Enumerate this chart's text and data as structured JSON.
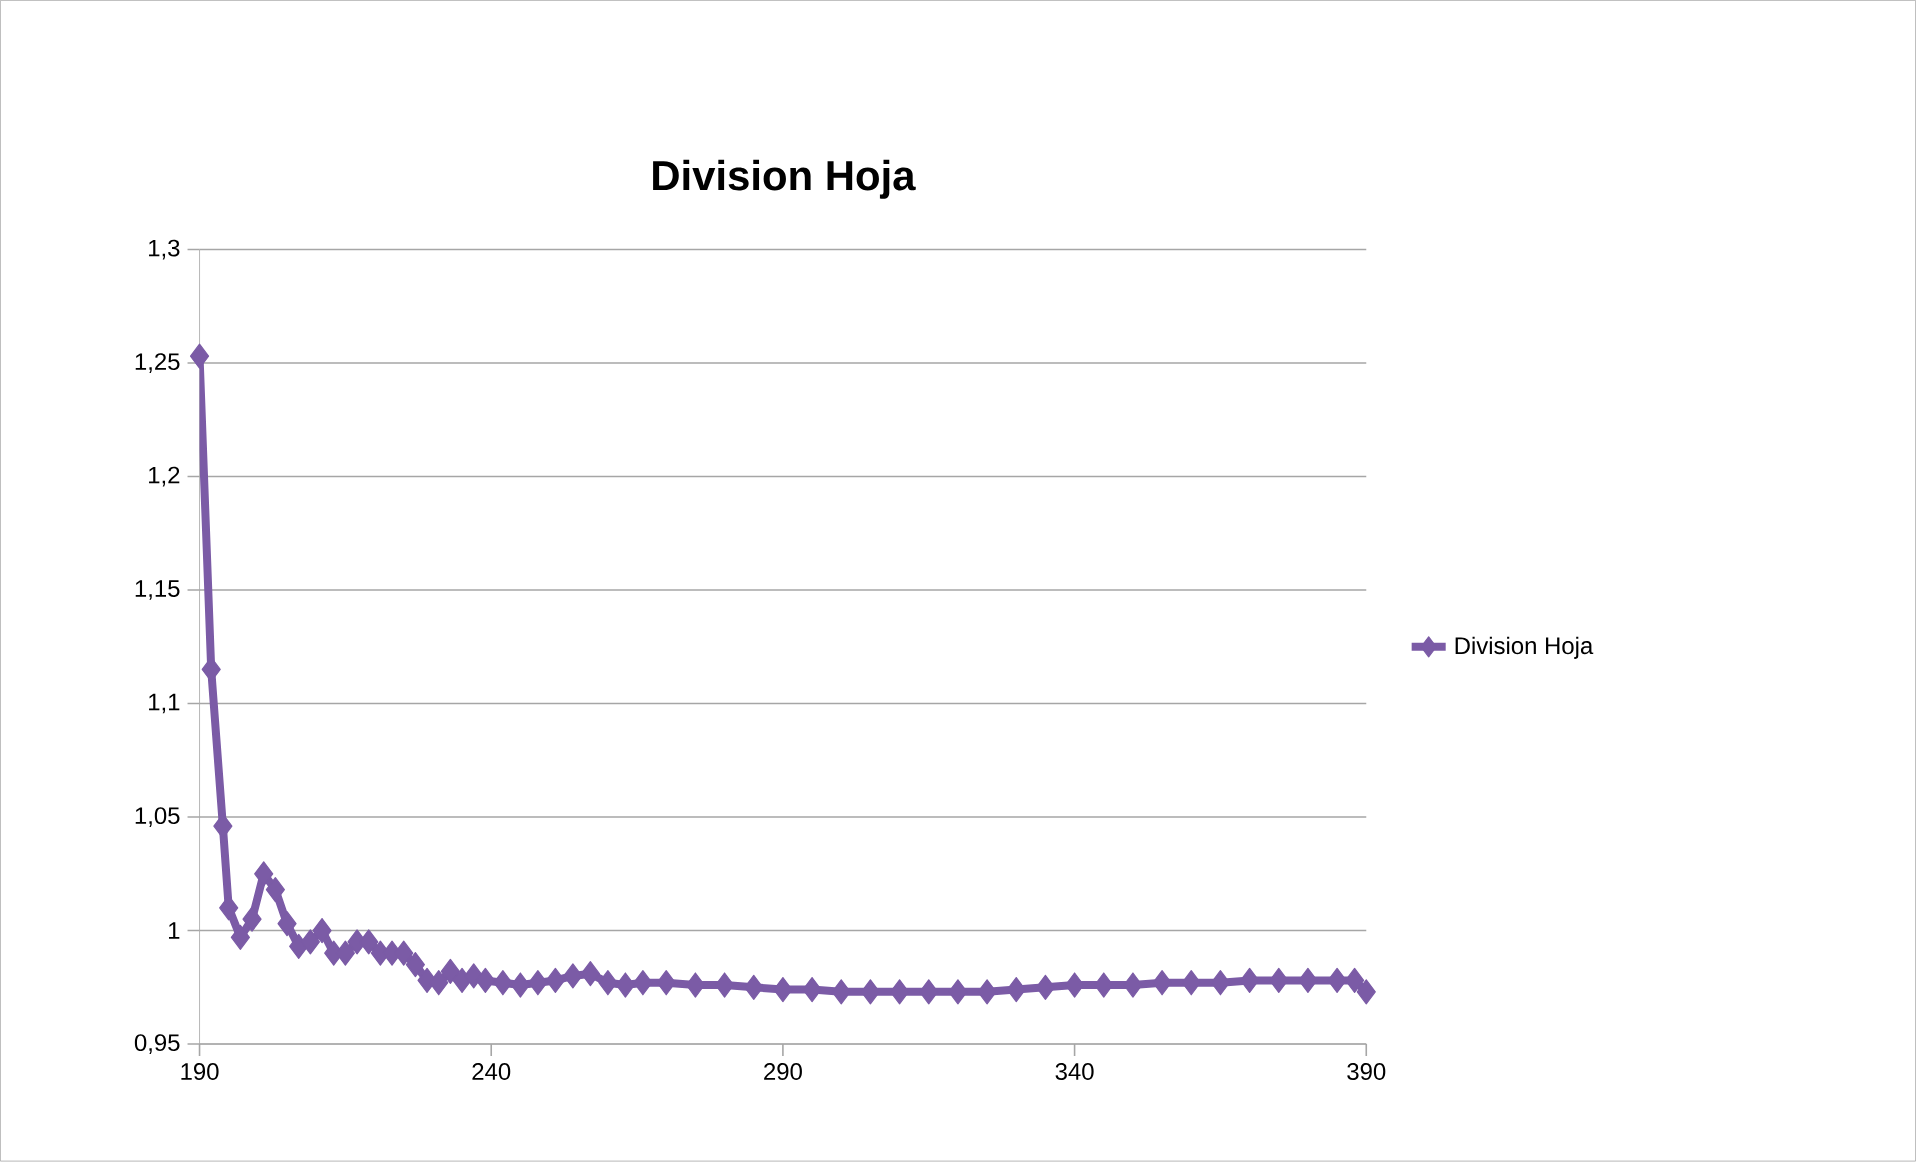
{
  "chart_data": {
    "type": "line",
    "title": "Division Hoja",
    "x": [
      190,
      192,
      194,
      195,
      197,
      199,
      201,
      203,
      205,
      207,
      209,
      211,
      213,
      215,
      217,
      219,
      221,
      223,
      225,
      227,
      229,
      231,
      233,
      235,
      237,
      239,
      242,
      245,
      248,
      251,
      254,
      257,
      260,
      263,
      266,
      270,
      275,
      280,
      285,
      290,
      295,
      300,
      305,
      310,
      315,
      320,
      325,
      330,
      335,
      340,
      345,
      350,
      355,
      360,
      365,
      370,
      375,
      380,
      385,
      388,
      390
    ],
    "series": [
      {
        "name": "Division Hoja",
        "color": "#7b5ba6",
        "values": [
          1.253,
          1.115,
          1.046,
          1.01,
          0.997,
          1.005,
          1.025,
          1.018,
          1.003,
          0.993,
          0.995,
          1.0,
          0.99,
          0.99,
          0.995,
          0.995,
          0.99,
          0.99,
          0.99,
          0.985,
          0.978,
          0.977,
          0.982,
          0.978,
          0.98,
          0.978,
          0.977,
          0.976,
          0.977,
          0.978,
          0.98,
          0.981,
          0.977,
          0.976,
          0.977,
          0.977,
          0.976,
          0.976,
          0.975,
          0.974,
          0.974,
          0.973,
          0.973,
          0.973,
          0.973,
          0.973,
          0.973,
          0.974,
          0.975,
          0.976,
          0.976,
          0.976,
          0.977,
          0.977,
          0.977,
          0.978,
          0.978,
          0.978,
          0.978,
          0.978,
          0.973
        ]
      }
    ],
    "xlim": [
      190,
      390
    ],
    "xticks": [
      190,
      240,
      290,
      340,
      390
    ],
    "ylim": [
      0.95,
      1.3
    ],
    "yticks": [
      {
        "value": 0.95,
        "label": "0,95"
      },
      {
        "value": 1,
        "label": "1"
      },
      {
        "value": 1.05,
        "label": "1,05"
      },
      {
        "value": 1.1,
        "label": "1,1"
      },
      {
        "value": 1.15,
        "label": "1,15"
      },
      {
        "value": 1.2,
        "label": "1,2"
      },
      {
        "value": 1.25,
        "label": "1,25"
      },
      {
        "value": 1.3,
        "label": "1,3"
      }
    ],
    "grid": "y",
    "legend": "right",
    "marker": "diamond",
    "line_style": "solid"
  }
}
